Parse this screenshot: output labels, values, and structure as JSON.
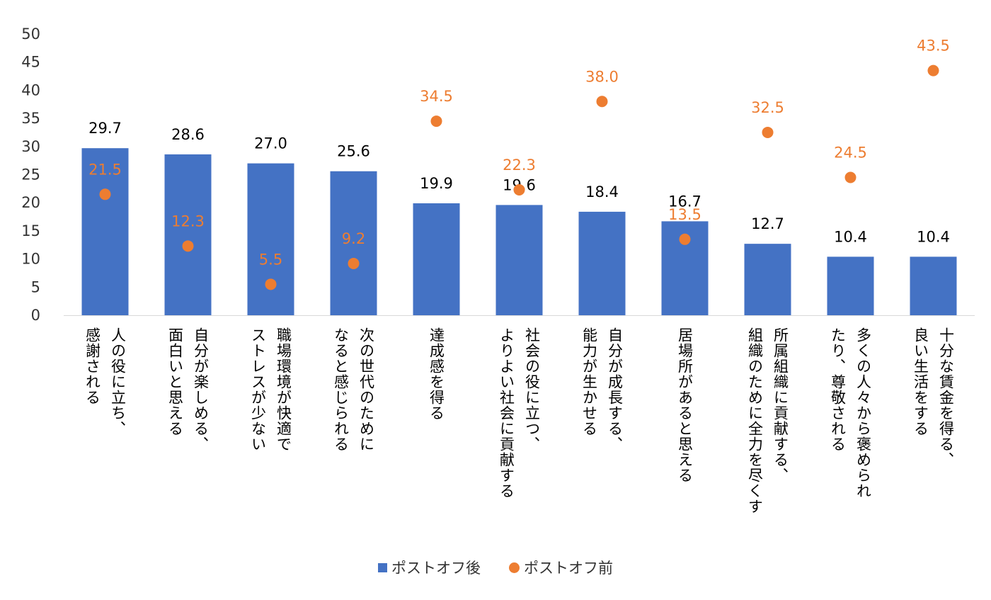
{
  "chart_data": {
    "type": "bar",
    "title": "",
    "xlabel": "",
    "ylabel": "",
    "ylim": [
      0,
      50
    ],
    "yticks": [
      0,
      5,
      10,
      15,
      20,
      25,
      30,
      35,
      40,
      45,
      50
    ],
    "grid": false,
    "legend_position": "bottom",
    "categories": [
      "人の役に立ち、\n感謝される",
      "自分が楽しめる、\n面白いと思える",
      "職場環境が快適で\nストレスが少ない",
      "次の世代のために\nなると感じられる",
      "達成感を得る",
      "社会の役に立つ、\nよりよい社会に貢献する",
      "自分が成長する、\n能力が生かせる",
      "居場所があると思える",
      "所属組織に貢献する、\n組織のために全力を尽くす",
      "多くの人々から褒められ\nたり、尊敬される",
      "十分な賃金を得る、\n良い生活をする"
    ],
    "series": [
      {
        "name": "ポストオフ後",
        "type": "bar",
        "color": "#4472c4",
        "values": [
          29.7,
          28.6,
          27.0,
          25.6,
          19.9,
          19.6,
          18.4,
          16.7,
          12.7,
          10.4,
          10.4
        ]
      },
      {
        "name": "ポストオフ前",
        "type": "scatter",
        "color": "#ed7d31",
        "values": [
          21.5,
          12.3,
          5.5,
          9.2,
          34.5,
          22.3,
          38.0,
          13.5,
          32.5,
          24.5,
          43.5
        ]
      }
    ]
  }
}
